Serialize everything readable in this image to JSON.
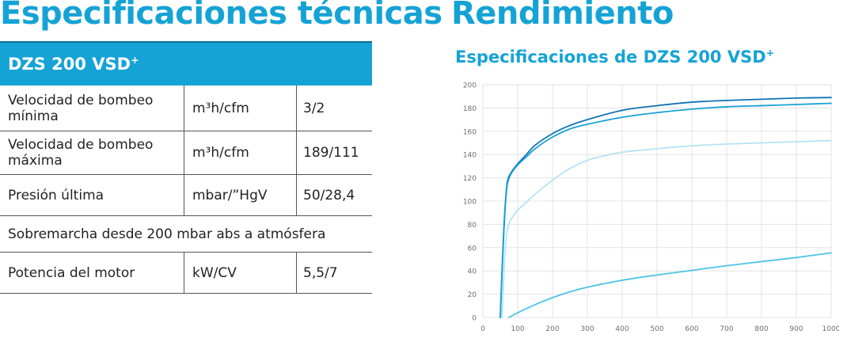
{
  "left_title": "Especificaciones técnicas",
  "right_title": "Rendimiento",
  "chart_heading": {
    "text": "Especificaciones de DZS 200 VSD",
    "sup": "+"
  },
  "table": {
    "header": {
      "text": "DZS 200 VSD",
      "sup": "+"
    },
    "rows": [
      {
        "label": "Velocidad de bombeo mínima",
        "unit": "m³h/cfm",
        "value": "3/2"
      },
      {
        "label": "Velocidad de bombeo máxima",
        "unit": "m³h/cfm",
        "value": "189/111"
      },
      {
        "label": "Presión última",
        "unit": "mbar/”HgV",
        "value": "50/28,4"
      }
    ],
    "note": "Sobremarcha desde 200 mbar abs a atmósfera",
    "rows2": [
      {
        "label": "Potencia del motor",
        "unit": "kW/CV",
        "value": "5,5/7"
      }
    ]
  },
  "colors": {
    "accent": "#15a3d6",
    "grid": "#e3e3e3",
    "tick_text": "#6d6d6d"
  },
  "chart_data": {
    "type": "line",
    "title": "Especificaciones de DZS 200 VSD+",
    "xlabel": "",
    "ylabel": "",
    "xlim": [
      0,
      1000
    ],
    "ylim": [
      0,
      200
    ],
    "x_ticks": [
      0,
      100,
      200,
      300,
      400,
      500,
      600,
      700,
      800,
      900,
      1000
    ],
    "y_ticks": [
      0,
      20,
      40,
      60,
      80,
      100,
      120,
      140,
      160,
      180,
      200
    ],
    "grid": true,
    "series": [
      {
        "color": "#0f74b5",
        "points": [
          [
            50,
            0
          ],
          [
            55,
            40
          ],
          [
            60,
            75
          ],
          [
            65,
            100
          ],
          [
            70,
            116
          ],
          [
            80,
            124
          ],
          [
            100,
            132
          ],
          [
            125,
            140
          ],
          [
            150,
            148
          ],
          [
            200,
            158
          ],
          [
            250,
            165
          ],
          [
            300,
            170
          ],
          [
            400,
            178
          ],
          [
            500,
            182
          ],
          [
            600,
            185
          ],
          [
            700,
            186.5
          ],
          [
            800,
            187.5
          ],
          [
            900,
            188.5
          ],
          [
            1000,
            189
          ]
        ]
      },
      {
        "color": "#18a2d6",
        "points": [
          [
            50,
            0
          ],
          [
            55,
            38
          ],
          [
            60,
            72
          ],
          [
            65,
            98
          ],
          [
            70,
            114
          ],
          [
            80,
            123
          ],
          [
            100,
            131
          ],
          [
            125,
            138
          ],
          [
            150,
            145
          ],
          [
            200,
            155
          ],
          [
            250,
            162
          ],
          [
            300,
            166
          ],
          [
            400,
            172
          ],
          [
            500,
            176
          ],
          [
            600,
            179
          ],
          [
            700,
            181
          ],
          [
            800,
            182
          ],
          [
            900,
            183
          ],
          [
            1000,
            184
          ]
        ]
      },
      {
        "color": "#b5e3f4",
        "points": [
          [
            55,
            0
          ],
          [
            60,
            35
          ],
          [
            65,
            60
          ],
          [
            70,
            75
          ],
          [
            80,
            84
          ],
          [
            100,
            92
          ],
          [
            125,
            99
          ],
          [
            150,
            106
          ],
          [
            200,
            118
          ],
          [
            250,
            128
          ],
          [
            300,
            135
          ],
          [
            350,
            139
          ],
          [
            400,
            142
          ],
          [
            500,
            145
          ],
          [
            600,
            147.5
          ],
          [
            700,
            149
          ],
          [
            800,
            150
          ],
          [
            900,
            151
          ],
          [
            1000,
            152
          ]
        ]
      },
      {
        "color": "#4cc4e6",
        "points": [
          [
            75,
            0
          ],
          [
            100,
            4
          ],
          [
            150,
            11
          ],
          [
            200,
            17
          ],
          [
            250,
            22
          ],
          [
            300,
            26
          ],
          [
            400,
            32
          ],
          [
            500,
            36.5
          ],
          [
            600,
            40.5
          ],
          [
            700,
            44.5
          ],
          [
            800,
            48
          ],
          [
            900,
            51.5
          ],
          [
            1000,
            55.5
          ]
        ]
      }
    ]
  }
}
